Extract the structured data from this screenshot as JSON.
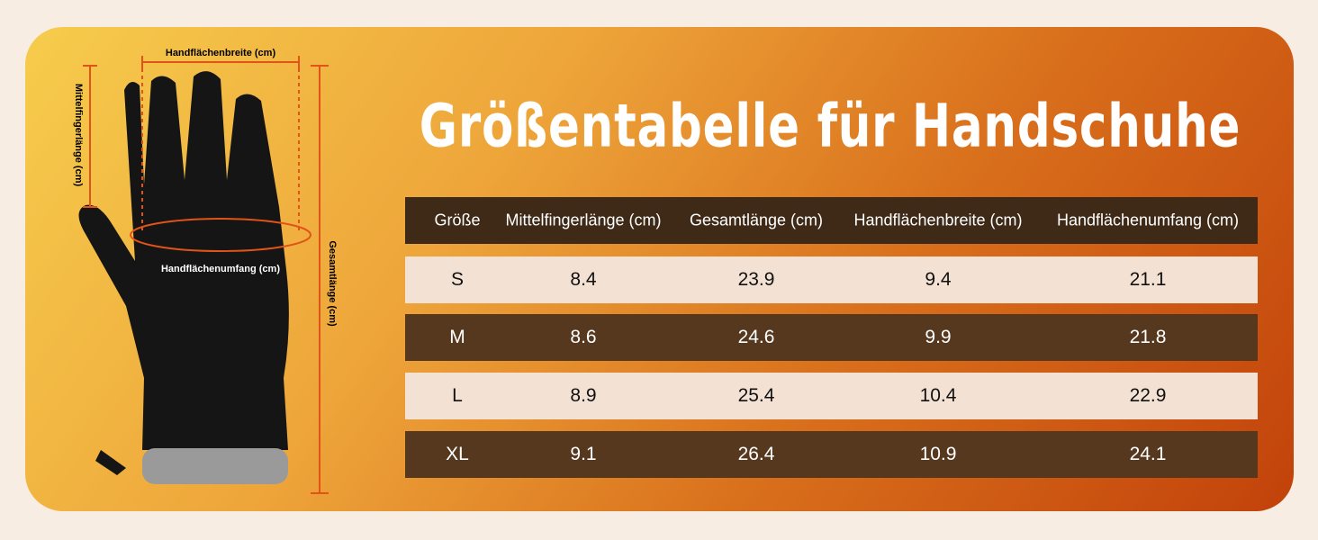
{
  "title": "Größentabelle für Handschuhe",
  "diagram": {
    "palm_width": "Handflächenbreite (cm)",
    "middle_finger": "Mittelfingerlänge (cm)",
    "total_length": "Gesamtlänge (cm)",
    "palm_circumference": "Handflächenumfang (cm)"
  },
  "table": {
    "header": [
      "Größe",
      "Mittelfingerlänge (cm)",
      "Gesamtlänge (cm)",
      "Handflächenbreite (cm)",
      "Handflächenumfang (cm)"
    ],
    "rows": [
      [
        "S",
        8.4,
        23.9,
        9.4,
        21.1
      ],
      [
        "M",
        8.6,
        24.6,
        9.9,
        21.8
      ],
      [
        "L",
        8.9,
        25.4,
        10.4,
        22.9
      ],
      [
        "XL",
        9.1,
        26.4,
        10.9,
        24.1
      ]
    ]
  }
}
